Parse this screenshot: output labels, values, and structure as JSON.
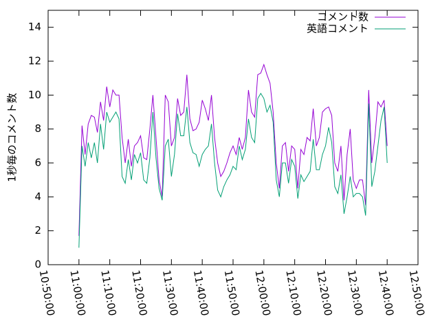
{
  "chart_data": {
    "type": "line",
    "ylabel": "1秒毎のコメント数",
    "x": [
      "11:00:00",
      "11:01:00",
      "11:02:00",
      "11:03:00",
      "11:04:00",
      "11:05:00",
      "11:06:00",
      "11:07:00",
      "11:08:00",
      "11:09:00",
      "11:10:00",
      "11:11:00",
      "11:12:00",
      "11:13:00",
      "11:14:00",
      "11:15:00",
      "11:16:00",
      "11:17:00",
      "11:18:00",
      "11:19:00",
      "11:20:00",
      "11:21:00",
      "11:22:00",
      "11:23:00",
      "11:24:00",
      "11:25:00",
      "11:26:00",
      "11:27:00",
      "11:28:00",
      "11:29:00",
      "11:30:00",
      "11:31:00",
      "11:32:00",
      "11:33:00",
      "11:34:00",
      "11:35:00",
      "11:36:00",
      "11:37:00",
      "11:38:00",
      "11:39:00",
      "11:40:00",
      "11:41:00",
      "11:42:00",
      "11:43:00",
      "11:44:00",
      "11:45:00",
      "11:46:00",
      "11:47:00",
      "11:48:00",
      "11:49:00",
      "11:50:00",
      "11:51:00",
      "11:52:00",
      "11:53:00",
      "11:54:00",
      "11:55:00",
      "11:56:00",
      "11:57:00",
      "11:58:00",
      "11:59:00",
      "12:00:00",
      "12:01:00",
      "12:02:00",
      "12:03:00",
      "12:04:00",
      "12:05:00",
      "12:06:00",
      "12:07:00",
      "12:08:00",
      "12:09:00",
      "12:10:00",
      "12:11:00",
      "12:12:00",
      "12:13:00",
      "12:14:00",
      "12:15:00",
      "12:16:00",
      "12:17:00",
      "12:18:00",
      "12:19:00",
      "12:20:00",
      "12:21:00",
      "12:22:00",
      "12:23:00",
      "12:24:00",
      "12:25:00",
      "12:26:00",
      "12:27:00",
      "12:28:00",
      "12:29:00",
      "12:30:00",
      "12:31:00",
      "12:32:00",
      "12:33:00",
      "12:34:00",
      "12:35:00",
      "12:36:00",
      "12:37:00",
      "12:38:00",
      "12:39:00",
      "12:40:00"
    ],
    "series": [
      {
        "name": "コメント数",
        "color": "#9400d3",
        "values": [
          1.7,
          8.2,
          6.5,
          8.3,
          8.8,
          8.7,
          7.8,
          9.6,
          8.5,
          10.5,
          9.3,
          10.3,
          10.0,
          10.0,
          7.5,
          6.0,
          7.4,
          5.8,
          7.0,
          7.2,
          7.6,
          6.3,
          6.2,
          8.0,
          10.0,
          7.5,
          5.0,
          4.0,
          10.0,
          9.6,
          7.0,
          7.5,
          9.8,
          8.8,
          9.0,
          11.2,
          8.6,
          7.9,
          8.0,
          8.4,
          9.7,
          9.2,
          8.5,
          10.0,
          7.5,
          6.0,
          5.2,
          5.5,
          6.0,
          6.6,
          7.0,
          6.5,
          7.5,
          6.8,
          7.5,
          10.3,
          9.0,
          8.7,
          11.2,
          11.3,
          11.8,
          11.2,
          10.7,
          9.0,
          6.0,
          4.5,
          7.0,
          7.2,
          5.5,
          7.0,
          6.8,
          4.5,
          6.8,
          6.5,
          7.5,
          7.3,
          9.2,
          7.0,
          7.5,
          9.0,
          9.2,
          9.3,
          8.8,
          6.0,
          5.5,
          7.0,
          3.8,
          6.5,
          8.0,
          5.0,
          4.5,
          5.0,
          5.0,
          3.5,
          10.3,
          6.0,
          7.5,
          9.6,
          9.3,
          9.7,
          7.0
        ]
      },
      {
        "name": "英語コメント",
        "color": "#009e73",
        "values": [
          1.0,
          7.0,
          5.8,
          7.2,
          6.3,
          7.2,
          6.0,
          8.3,
          6.8,
          9.0,
          8.4,
          8.7,
          9.0,
          8.6,
          5.2,
          4.8,
          6.2,
          5.0,
          6.5,
          6.0,
          6.6,
          5.0,
          4.8,
          6.3,
          9.0,
          6.3,
          4.5,
          3.8,
          7.0,
          7.4,
          5.2,
          6.5,
          8.9,
          7.6,
          7.6,
          9.3,
          7.2,
          6.6,
          6.5,
          5.8,
          6.5,
          6.8,
          7.0,
          8.3,
          6.0,
          4.4,
          4.0,
          4.6,
          5.0,
          5.3,
          5.8,
          5.6,
          7.0,
          6.2,
          6.8,
          8.6,
          7.5,
          7.2,
          9.8,
          10.1,
          9.8,
          9.0,
          9.4,
          8.4,
          5.0,
          4.0,
          6.0,
          6.0,
          4.8,
          6.2,
          5.8,
          3.9,
          5.3,
          4.9,
          5.2,
          5.5,
          7.4,
          5.6,
          5.6,
          6.5,
          7.0,
          8.1,
          7.2,
          4.6,
          4.2,
          5.3,
          3.0,
          4.0,
          5.2,
          4.0,
          4.2,
          4.2,
          4.0,
          2.9,
          9.5,
          4.6,
          5.5,
          7.0,
          8.5,
          9.3,
          6.0
        ]
      }
    ],
    "xlim": [
      "10:50:00",
      "12:50:00"
    ],
    "xticks": [
      "10:50:00",
      "11:00:00",
      "11:10:00",
      "11:20:00",
      "11:30:00",
      "11:40:00",
      "11:50:00",
      "12:00:00",
      "12:10:00",
      "12:20:00",
      "12:30:00",
      "12:40:00",
      "12:50:00"
    ],
    "ylim": [
      0,
      15
    ],
    "yticks": [
      0,
      2,
      4,
      6,
      8,
      10,
      12,
      14
    ],
    "legend": "top-right"
  }
}
